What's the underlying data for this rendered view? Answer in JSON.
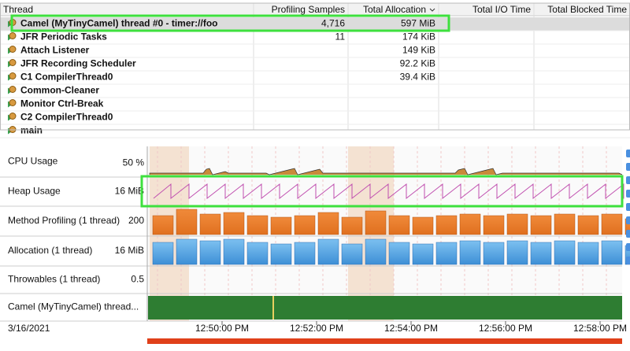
{
  "table": {
    "headers": [
      "Thread",
      "Profiling Samples",
      "Total Allocation",
      "Total I/O Time",
      "Total Blocked Time"
    ],
    "rows": [
      {
        "name": "Camel (MyTinyCamel) thread #0 - timer://foo",
        "samples": "4,716",
        "allocation": "597 MiB"
      },
      {
        "name": "JFR Periodic Tasks",
        "samples": "11",
        "allocation": "174 KiB"
      },
      {
        "name": "Attach Listener",
        "allocation": "149 KiB"
      },
      {
        "name": "JFR Recording Scheduler",
        "allocation": "92.2 KiB"
      },
      {
        "name": "C1 CompilerThread0",
        "allocation": "39.4 KiB"
      },
      {
        "name": "Common-Cleaner"
      },
      {
        "name": "Monitor Ctrl-Break"
      },
      {
        "name": "C2 CompilerThread0"
      },
      {
        "name": "main"
      }
    ]
  },
  "lanes": [
    {
      "label": "CPU Usage",
      "scale": "50 %"
    },
    {
      "label": "Heap Usage",
      "scale": "16 MiB"
    },
    {
      "label": "Method Profiling (1 thread)",
      "scale": "200"
    },
    {
      "label": "Allocation (1 thread)",
      "scale": "16 MiB"
    },
    {
      "label": "Throwables (1 thread)",
      "scale": "0.5"
    },
    {
      "label": "Camel (MyTinyCamel) thread..."
    }
  ],
  "timeline": {
    "date": "3/16/2021",
    "ticks": [
      "12:50:00 PM",
      "12:52:00 PM",
      "12:54:00 PM",
      "12:56:00 PM",
      "12:58:00 PM"
    ]
  }
}
